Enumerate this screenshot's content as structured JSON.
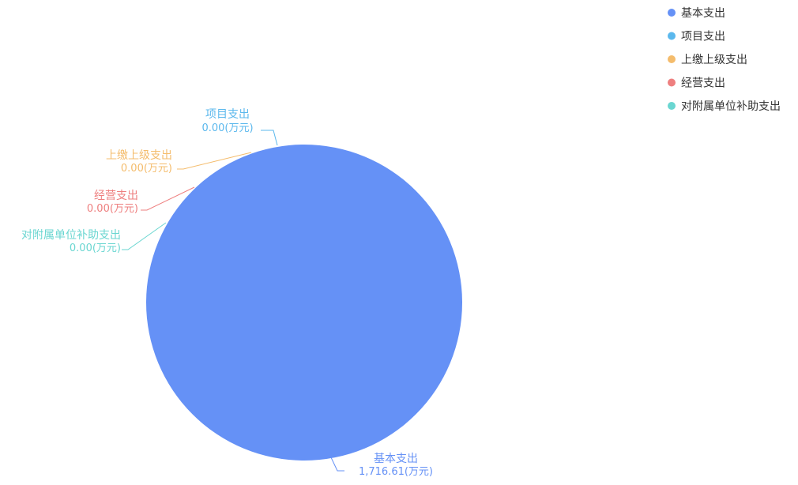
{
  "chart_data": {
    "type": "pie",
    "value_unit": "(万元)",
    "series": [
      {
        "name": "基本支出",
        "value": 1716.61,
        "display_value": "1,716.61",
        "color": "#6591F6"
      },
      {
        "name": "项目支出",
        "value": 0.0,
        "display_value": "0.00",
        "color": "#5BB8ED"
      },
      {
        "name": "上缴上级支出",
        "value": 0.0,
        "display_value": "0.00",
        "color": "#F4BC6C"
      },
      {
        "name": "经营支出",
        "value": 0.0,
        "display_value": "0.00",
        "color": "#EE7F7F"
      },
      {
        "name": "对附属单位补助支出",
        "value": 0.0,
        "display_value": "0.00",
        "color": "#6AD6D1"
      }
    ],
    "legend_position": "top-right"
  }
}
